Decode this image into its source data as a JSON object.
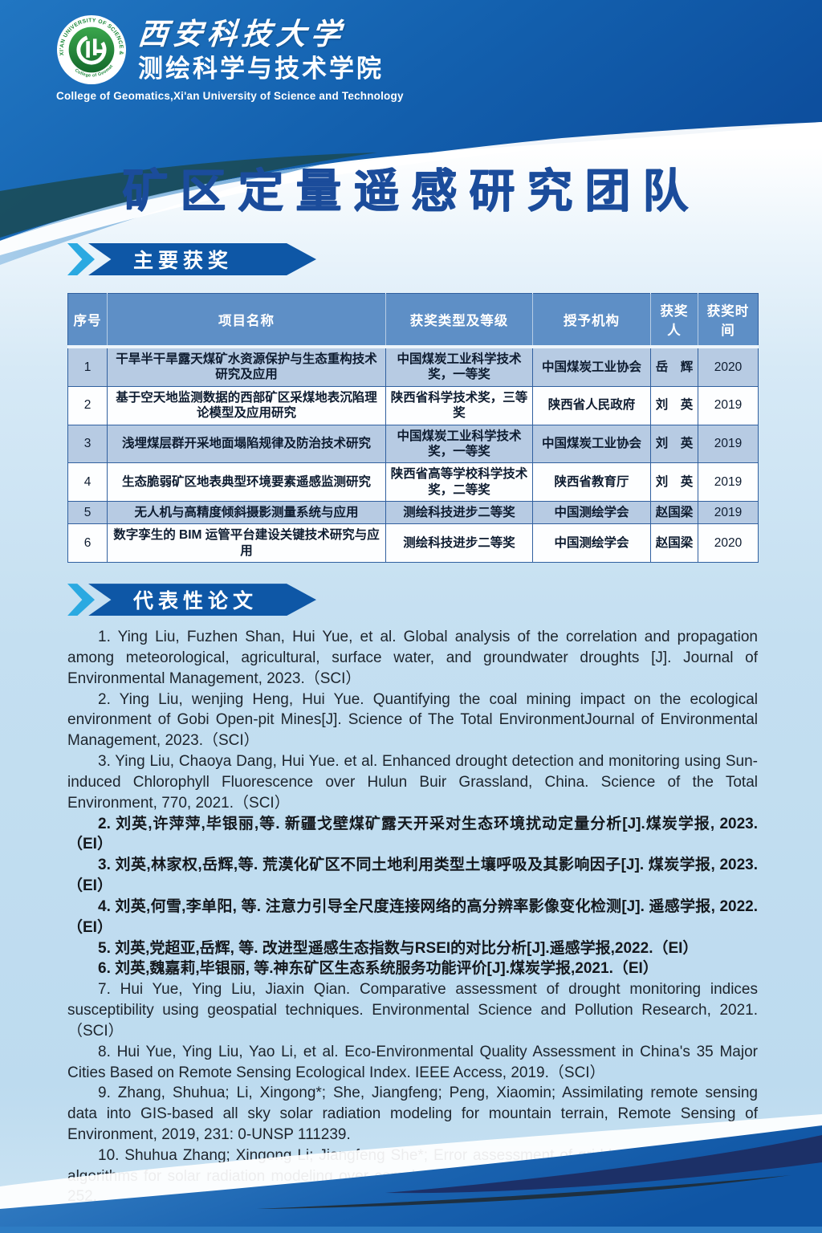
{
  "header": {
    "university_cn": "西安科技大学",
    "college_cn": "测绘科学与技术学院",
    "college_en": "College of  Geomatics,Xi'an University of Science and Technology",
    "logo_ring_text": "XI'AN UNIVERSITY OF SCIENCE & TECHNOLOGY",
    "logo_sub_text": "College of Geomatics"
  },
  "title": "矿区定量遥感研究团队",
  "sections": {
    "awards_label": "主要获奖",
    "papers_label": "代表性论文"
  },
  "awards": {
    "headers": [
      "序号",
      "项目名称",
      "获奖类型及等级",
      "授予机构",
      "获奖人",
      "获奖时间"
    ],
    "rows": [
      [
        "1",
        "干旱半干旱露天煤矿水资源保护与生态重构技术研究及应用",
        "中国煤炭工业科学技术奖，一等奖",
        "中国煤炭工业协会",
        "岳　辉",
        "2020"
      ],
      [
        "2",
        "基于空天地监测数据的西部矿区采煤地表沉陷理论模型及应用研究",
        "陕西省科学技术奖，三等奖",
        "陕西省人民政府",
        "刘　英",
        "2019"
      ],
      [
        "3",
        "浅埋煤层群开采地面塌陷规律及防治技术研究",
        "中国煤炭工业科学技术奖，一等奖",
        "中国煤炭工业协会",
        "刘　英",
        "2019"
      ],
      [
        "4",
        "生态脆弱矿区地表典型环境要素遥感监测研究",
        "陕西省高等学校科学技术奖，二等奖",
        "陕西省教育厅",
        "刘　英",
        "2019"
      ],
      [
        "5",
        "无人机与高精度倾斜摄影测量系统与应用",
        "测绘科技进步二等奖",
        "中国测绘学会",
        "赵国梁",
        "2019"
      ],
      [
        "6",
        "数字孪生的 BIM 运管平台建设关键技术研究与应用",
        "测绘科技进步二等奖",
        "中国测绘学会",
        "赵国梁",
        "2020"
      ]
    ]
  },
  "papers": {
    "items": [
      {
        "lang": "en",
        "text": "1. Ying Liu, Fuzhen Shan, Hui Yue, et al. Global analysis of the correlation and propagation among meteorological, agricultural, surface water, and groundwater droughts [J]. Journal of Environmental Management, 2023.（SCI）"
      },
      {
        "lang": "en",
        "text": "2. Ying Liu, wenjing Heng, Hui Yue. Quantifying the coal mining impact on the ecological environment of Gobi Open-pit Mines[J]. Science of The Total EnvironmentJournal of Environmental Management, 2023.（SCI）"
      },
      {
        "lang": "en",
        "text": "3. Ying Liu, Chaoya Dang, Hui Yue. et al. Enhanced drought detection and monitoring using Sun-induced Chlorophyll Fluorescence over Hulun Buir Grassland, China. Science of the Total Environment, 770, 2021.（SCI）"
      },
      {
        "lang": "zh",
        "text": "2. 刘英,许萍萍,毕银丽,等. 新疆戈壁煤矿露天开采对生态环境扰动定量分析[J].煤炭学报, 2023.（EI）"
      },
      {
        "lang": "zh",
        "text": "3. 刘英,林家权,岳辉,等. 荒漠化矿区不同土地利用类型土壤呼吸及其影响因子[J]. 煤炭学报, 2023.（EI）"
      },
      {
        "lang": "zh",
        "text": "4. 刘英,何雪,李单阳, 等. 注意力引导全尺度连接网络的高分辨率影像变化检测[J]. 遥感学报, 2022.（EI）"
      },
      {
        "lang": "zh",
        "text": "5. 刘英,党超亚,岳辉, 等. 改进型遥感生态指数与RSEI的对比分析[J].遥感学报,2022.（EI）"
      },
      {
        "lang": "zh",
        "text": "6. 刘英,魏嘉莉,毕银丽, 等.神东矿区生态系统服务功能评价[J].煤炭学报,2021.（EI）"
      },
      {
        "lang": "en",
        "text": "7. Hui Yue, Ying Liu, Jiaxin Qian. Comparative assessment of drought monitoring indices susceptibility using geospatial techniques. Environmental Science and Pollution Research, 2021.（SCI）"
      },
      {
        "lang": "en",
        "text": "8. Hui Yue, Ying Liu, Yao Li, et al. Eco-Environmental Quality Assessment in China's 35 Major Cities Based on Remote Sensing Ecological Index. IEEE Access, 2019.（SCI）"
      },
      {
        "lang": "en",
        "text": "9. Zhang, Shuhua; Li, Xingong*; She, Jiangfeng; Peng, Xiaomin; Assimilating remote sensing data into GIS-based all sky solar radiation modeling for mountain terrain, Remote Sensing of Environment, 2019, 231: 0-UNSP 111239."
      },
      {
        "lang": "en",
        "text": "10. Shuhua Zhang; Xingong Li; Jiangfeng She*; Error assessment of grid-based terrain shading algorithms for solar radiation modeling over complex terrain, Transactions in GIS, 2020, 1(24): 230-252."
      }
    ]
  },
  "colors": {
    "header_band_blue": "#1360ae",
    "banner_blue": "#0e57a6",
    "chevron_blue": "#2aa9e1",
    "title_blue": "#1b4c9b",
    "table_header_bg": "#5e8fc6",
    "table_row_alt": "#b7cbe3",
    "logo_green": "#1f8a3d"
  }
}
